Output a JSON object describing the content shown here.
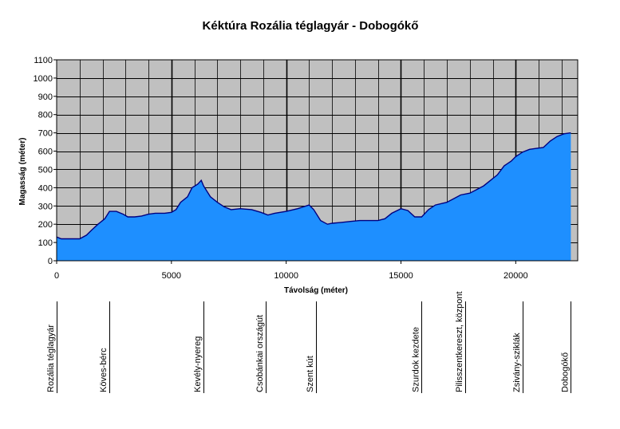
{
  "chart_data": {
    "type": "area",
    "title": "Kéktúra Rozália téglagyár - Dobogókő",
    "xlabel": "Távolság (méter)",
    "ylabel": "Magasság (méter)",
    "xlim": [
      0,
      22700
    ],
    "ylim": [
      0,
      1100
    ],
    "x_ticks": [
      0,
      5000,
      10000,
      15000,
      20000
    ],
    "y_ticks": [
      0,
      100,
      200,
      300,
      400,
      500,
      600,
      700,
      800,
      900,
      1000,
      1100
    ],
    "grid": true,
    "legend": "none",
    "colors": {
      "plot_bg": "#c0c0c0",
      "fill": "#1e8fff",
      "line": "#000080",
      "grid": "#000000"
    },
    "series": [
      {
        "x": [
          0,
          200,
          500,
          1000,
          1300,
          1500,
          1800,
          2100,
          2300,
          2600,
          2900,
          3100,
          3400,
          3700,
          4000,
          4300,
          4700,
          5000,
          5200,
          5400,
          5700,
          5900,
          6150,
          6300,
          6400,
          6700,
          7000,
          7300,
          7600,
          8000,
          8500,
          8900,
          9200,
          9500,
          10000,
          10500,
          11000,
          11200,
          11500,
          11800,
          12000,
          12400,
          12800,
          13200,
          13600,
          14000,
          14300,
          14600,
          15000,
          15300,
          15600,
          15900,
          16200,
          16500,
          17000,
          17300,
          17600,
          18000,
          18300,
          18600,
          18900,
          19200,
          19500,
          19800,
          20000,
          20300,
          20600,
          20900,
          21200,
          21500,
          21800,
          22100,
          22400
        ],
        "y": [
          130,
          120,
          120,
          120,
          140,
          165,
          200,
          230,
          270,
          270,
          255,
          240,
          240,
          245,
          255,
          260,
          260,
          265,
          280,
          320,
          350,
          400,
          420,
          440,
          410,
          350,
          320,
          295,
          280,
          285,
          280,
          265,
          250,
          260,
          270,
          285,
          305,
          280,
          220,
          200,
          205,
          210,
          215,
          220,
          220,
          220,
          230,
          260,
          285,
          275,
          240,
          240,
          280,
          305,
          320,
          340,
          360,
          370,
          390,
          410,
          440,
          470,
          520,
          545,
          570,
          595,
          610,
          615,
          620,
          655,
          680,
          695,
          700
        ]
      }
    ],
    "waypoints": [
      {
        "x": 0,
        "label": "Rozália téglagyár"
      },
      {
        "x": 2300,
        "label": "Köves-bérc"
      },
      {
        "x": 6400,
        "label": "Kevély-nyereg"
      },
      {
        "x": 9100,
        "label": "Csobánkai országút"
      },
      {
        "x": 11300,
        "label": "Szent kút"
      },
      {
        "x": 15900,
        "label": "Szurdok kezdete"
      },
      {
        "x": 17800,
        "label": "Pilisszentkereszt, központ"
      },
      {
        "x": 20300,
        "label": "Zsivány-sziklák"
      },
      {
        "x": 22400,
        "label": "Dobogókő"
      }
    ]
  }
}
